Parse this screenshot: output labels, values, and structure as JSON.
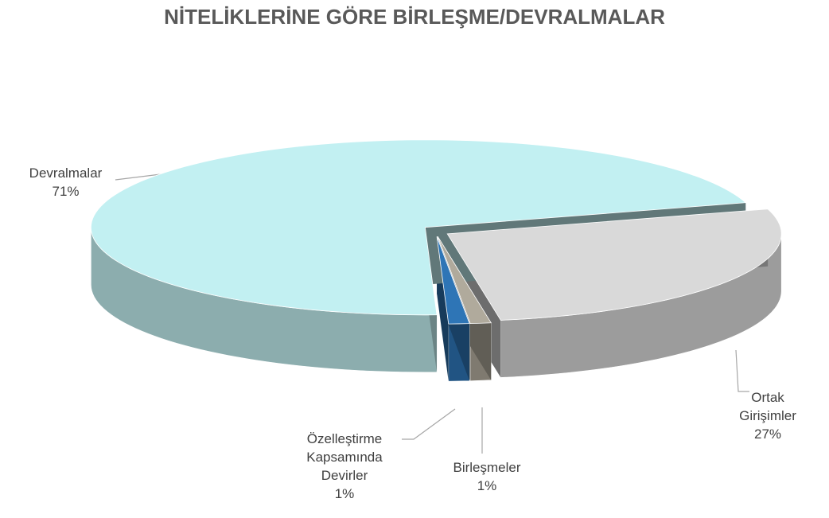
{
  "chart_data": {
    "type": "pie",
    "title": "NİTELİKLERİNE GÖRE BİRLEŞME/DEVRALMALAR",
    "categories": [
      "Ortak Girişimler",
      "Birleşmeler",
      "Özelleştirme Kapsamında Devirler",
      "Devralmalar"
    ],
    "values": [
      27,
      1,
      1,
      71
    ],
    "value_labels": [
      "27%",
      "1%",
      "1%",
      "71%"
    ],
    "colors": [
      "#d9d9d9",
      "#b0aa9c",
      "#2e75b6",
      "#c2f0f2"
    ]
  }
}
